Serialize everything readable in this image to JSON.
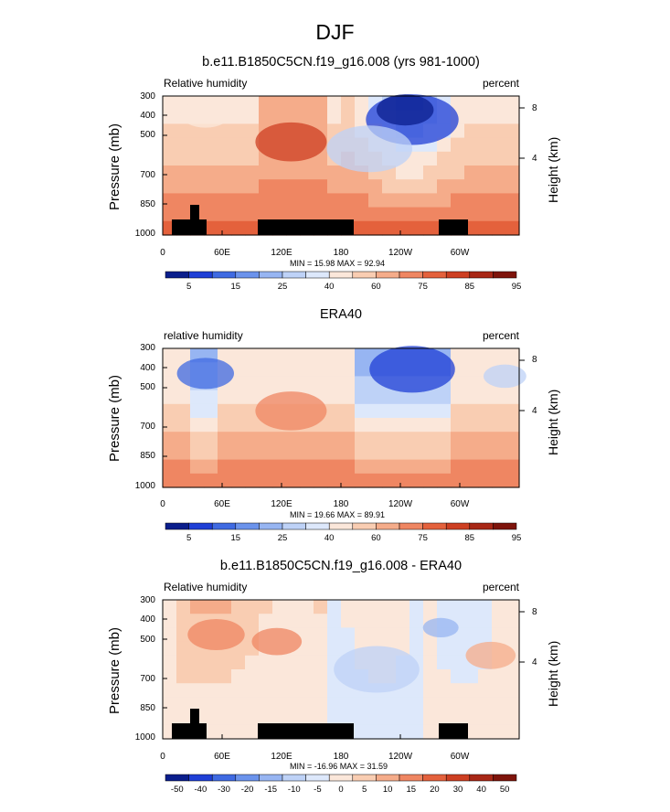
{
  "title": "DJF",
  "colors": {
    "ramp": [
      "#0a1e8c",
      "#1f3fd6",
      "#3f6ae2",
      "#6b93ec",
      "#97b5f2",
      "#bed2f7",
      "#dde8fb",
      "#fbe7da",
      "#f9cdb2",
      "#f5ac8a",
      "#ef8662",
      "#e4613c",
      "#cd3f22",
      "#a82716",
      "#7e140b"
    ],
    "land": "#000000"
  },
  "chart_data": [
    {
      "type": "heatmap",
      "title": "b.e11.B1850C5CN.f19_g16.008 (yrs 981-1000)",
      "left_label": "Relative humidity",
      "right_label": "percent",
      "ylabel": "Pressure (mb)",
      "ylabel_right": "Height (km)",
      "yticks": [
        "300",
        "400",
        "500",
        "700",
        "850",
        "1000"
      ],
      "yticks_right": [
        "8",
        "4"
      ],
      "xticks": [
        "0",
        "60E",
        "120E",
        "180",
        "120W",
        "60W"
      ],
      "stats": "MIN =  15.98   MAX =  92.94",
      "colorbar_labels": [
        "5",
        "15",
        "25",
        "40",
        "60",
        "75",
        "85",
        "95"
      ],
      "blobs": [
        {
          "x": 0.12,
          "y": 0.13,
          "r": 0.07,
          "v": 7
        },
        {
          "x": 0.36,
          "y": 0.33,
          "r": 0.1,
          "v": 12
        },
        {
          "x": 0.7,
          "y": 0.17,
          "r": 0.13,
          "v": 1
        },
        {
          "x": 0.68,
          "y": 0.1,
          "r": 0.08,
          "v": 0
        },
        {
          "x": 0.58,
          "y": 0.38,
          "r": 0.12,
          "v": 5
        }
      ],
      "land": true
    },
    {
      "type": "heatmap",
      "title": "ERA40",
      "left_label": "relative humidity",
      "right_label": "percent",
      "ylabel": "Pressure (mb)",
      "ylabel_right": "Height (km)",
      "yticks": [
        "300",
        "400",
        "500",
        "700",
        "850",
        "1000"
      ],
      "yticks_right": [
        "8",
        "4"
      ],
      "xticks": [
        "0",
        "60E",
        "120E",
        "180",
        "120W",
        "60W"
      ],
      "stats": "MIN =  19.66   MAX =  89.91",
      "colorbar_labels": [
        "5",
        "15",
        "25",
        "40",
        "60",
        "75",
        "85",
        "95"
      ],
      "blobs": [
        {
          "x": 0.12,
          "y": 0.18,
          "r": 0.08,
          "v": 2
        },
        {
          "x": 0.7,
          "y": 0.15,
          "r": 0.12,
          "v": 1
        },
        {
          "x": 0.36,
          "y": 0.45,
          "r": 0.1,
          "v": 10
        },
        {
          "x": 0.96,
          "y": 0.2,
          "r": 0.06,
          "v": 5
        }
      ],
      "land": false
    },
    {
      "type": "heatmap",
      "title": "b.e11.B1850C5CN.f19_g16.008 - ERA40",
      "left_label": "Relative humidity",
      "right_label": "percent",
      "ylabel": "Pressure (mb)",
      "ylabel_right": "Height (km)",
      "yticks": [
        "300",
        "400",
        "500",
        "700",
        "850",
        "1000"
      ],
      "yticks_right": [
        "8",
        "4"
      ],
      "xticks": [
        "0",
        "60E",
        "120E",
        "180",
        "120W",
        "60W"
      ],
      "stats": "MIN = -16.96   MAX =  31.59",
      "colorbar_labels": [
        "-50",
        "-40",
        "-30",
        "-20",
        "-15",
        "-10",
        "-5",
        "0",
        "5",
        "10",
        "15",
        "20",
        "30",
        "40",
        "50"
      ],
      "blobs": [
        {
          "x": 0.15,
          "y": 0.25,
          "r": 0.08,
          "v": 10
        },
        {
          "x": 0.32,
          "y": 0.3,
          "r": 0.07,
          "v": 10
        },
        {
          "x": 0.6,
          "y": 0.5,
          "r": 0.12,
          "v": 5
        },
        {
          "x": 0.78,
          "y": 0.2,
          "r": 0.05,
          "v": 4
        },
        {
          "x": 0.92,
          "y": 0.4,
          "r": 0.07,
          "v": 9
        }
      ],
      "land": true
    }
  ]
}
